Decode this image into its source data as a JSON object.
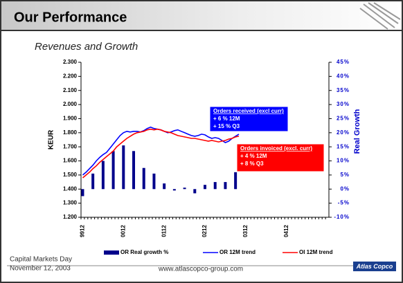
{
  "slide": {
    "title": "Our Performance",
    "subtitle": "Revenues and Growth",
    "footer_event": "Capital Markets Day",
    "footer_date": "November 12, 2003",
    "footer_url": "www.atlascopco-group.com",
    "logo": "Atlas Copco"
  },
  "chart_data": {
    "type": "line",
    "y_label": "KEUR",
    "y2_label": "Real Growth",
    "categories": [
      "9912",
      null,
      null,
      null,
      null,
      null,
      null,
      null,
      null,
      null,
      null,
      null,
      "0012",
      null,
      null,
      null,
      null,
      null,
      null,
      null,
      null,
      null,
      null,
      null,
      "0112",
      null,
      null,
      null,
      null,
      null,
      null,
      null,
      null,
      null,
      null,
      null,
      "0212",
      null,
      null,
      null,
      null,
      null,
      null,
      null,
      null,
      null,
      null,
      null,
      "0312",
      null,
      null,
      null,
      null,
      null,
      null,
      null,
      null,
      null,
      null,
      null,
      "0412",
      null,
      null,
      null,
      null,
      null,
      null,
      null,
      null,
      null,
      null,
      null,
      null
    ],
    "series": [
      {
        "name": "OR Real growth %",
        "type": "bar",
        "axis": "y2",
        "color": "#00008b",
        "values": [
          -2.5,
          null,
          null,
          5.5,
          null,
          null,
          10,
          null,
          null,
          13.5,
          null,
          null,
          15.5,
          null,
          null,
          13.5,
          null,
          null,
          7.5,
          null,
          null,
          5.5,
          null,
          null,
          2,
          null,
          null,
          -0.5,
          null,
          null,
          0.5,
          null,
          null,
          -1.5,
          null,
          null,
          1.5,
          null,
          null,
          2.5,
          null,
          null,
          2.5,
          null,
          null,
          6,
          null,
          null,
          null,
          null,
          null,
          null,
          null,
          null,
          null,
          null,
          null,
          null,
          null,
          null,
          null,
          null,
          null,
          null,
          null,
          null,
          null,
          null,
          null,
          null,
          null,
          null,
          null
        ]
      },
      {
        "name": "OR 12M trend",
        "type": "line",
        "color": "#0000ff",
        "values": [
          1500,
          1520,
          1545,
          1570,
          1600,
          1625,
          1645,
          1660,
          1690,
          1720,
          1750,
          1780,
          1800,
          1810,
          1805,
          1810,
          1810,
          1805,
          1815,
          1830,
          1840,
          1830,
          1825,
          1820,
          1810,
          1800,
          1805,
          1815,
          1820,
          1810,
          1800,
          1790,
          1780,
          1775,
          1780,
          1790,
          1785,
          1770,
          1760,
          1765,
          1760,
          1745,
          1730,
          1740,
          1760,
          1775,
          1790,
          null,
          null,
          null,
          null,
          null,
          null,
          null,
          null,
          null,
          null,
          null,
          null,
          null,
          null,
          null,
          null,
          null,
          null,
          null,
          null,
          null,
          null,
          null,
          null,
          null,
          null
        ]
      },
      {
        "name": "OI 12M trend",
        "type": "line",
        "color": "#ff0000",
        "values": [
          1480,
          1500,
          1520,
          1545,
          1565,
          1590,
          1610,
          1630,
          1650,
          1670,
          1700,
          1720,
          1740,
          1760,
          1775,
          1790,
          1800,
          1805,
          1810,
          1820,
          1825,
          1820,
          1825,
          1820,
          1810,
          1805,
          1800,
          1790,
          1780,
          1775,
          1770,
          1765,
          1760,
          1760,
          1755,
          1750,
          1745,
          1740,
          1745,
          1740,
          1735,
          1740,
          1745,
          1755,
          1760,
          1770,
          1775,
          null,
          null,
          null,
          null,
          null,
          null,
          null,
          null,
          null,
          null,
          null,
          null,
          null,
          null,
          null,
          null,
          null,
          null,
          null,
          null,
          null,
          null,
          null,
          null,
          null,
          null
        ]
      }
    ],
    "ylim": [
      1200,
      2300
    ],
    "yticks": [
      {
        "value": 1200,
        "label": "1.200"
      },
      {
        "value": 1300,
        "label": "1.300"
      },
      {
        "value": 1400,
        "label": "1.400"
      },
      {
        "value": 1500,
        "label": "1.500"
      },
      {
        "value": 1600,
        "label": "1.600"
      },
      {
        "value": 1700,
        "label": "1.700"
      },
      {
        "value": 1800,
        "label": "1.800"
      },
      {
        "value": 1900,
        "label": "1.900"
      },
      {
        "value": 2000,
        "label": "2.000"
      },
      {
        "value": 2100,
        "label": "2.100"
      },
      {
        "value": 2200,
        "label": "2.200"
      },
      {
        "value": 2300,
        "label": "2.300"
      }
    ],
    "y2lim": [
      -10,
      45
    ],
    "y2ticks": [
      {
        "value": -10,
        "label": "-10%"
      },
      {
        "value": -5,
        "label": "-5%"
      },
      {
        "value": 0,
        "label": "0%"
      },
      {
        "value": 5,
        "label": "5%"
      },
      {
        "value": 10,
        "label": "10%"
      },
      {
        "value": 15,
        "label": "15%"
      },
      {
        "value": 20,
        "label": "20%"
      },
      {
        "value": 25,
        "label": "25%"
      },
      {
        "value": 30,
        "label": "30%"
      },
      {
        "value": 35,
        "label": "35%"
      },
      {
        "value": 40,
        "label": "40%"
      },
      {
        "value": 45,
        "label": "45%"
      }
    ],
    "grid": false,
    "annotations": [
      {
        "lines": [
          "Orders received (excl curr)",
          "+   6 % 12M",
          "+ 15 %  Q3"
        ],
        "color": "#0000ff"
      },
      {
        "lines": [
          "Orders invoiced (excl. curr)",
          "+  4 % 12M",
          "+  8 %  Q3"
        ],
        "color": "#ff0000"
      }
    ]
  }
}
